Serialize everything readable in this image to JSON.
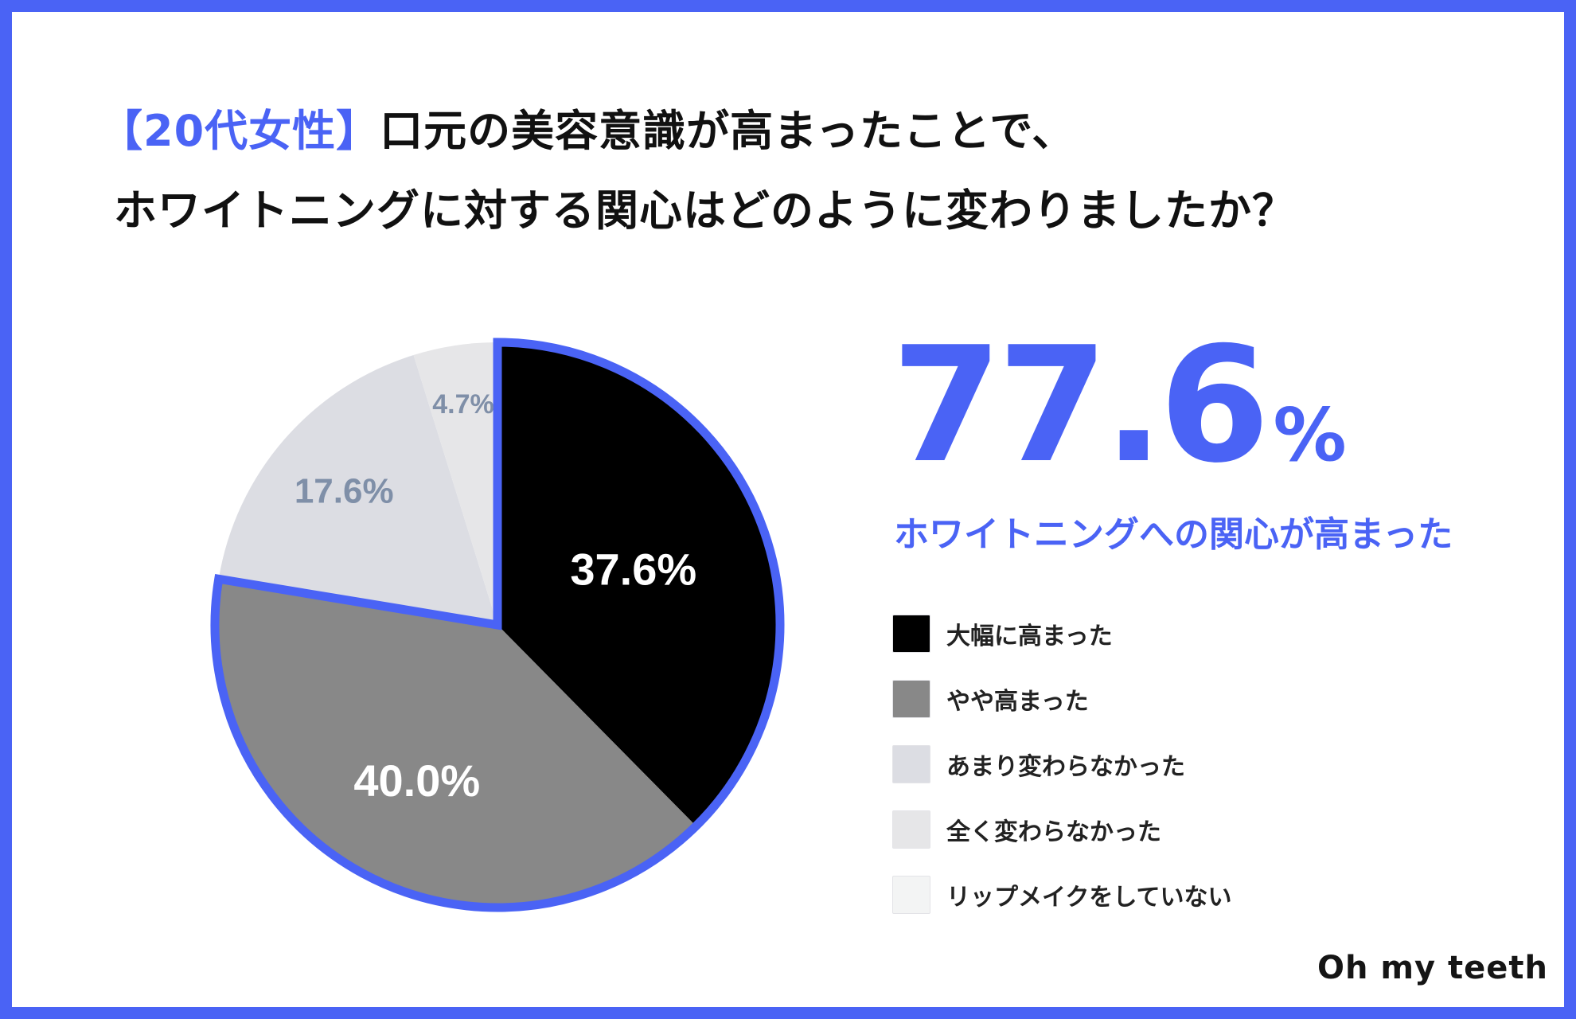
{
  "title": {
    "accent": "【20代女性】",
    "line1": "口元の美容意識が高まったことで、",
    "line2": "ホワイトニングに対する関心はどのように変わりましたか？"
  },
  "highlight": {
    "number": "77.6",
    "unit": "%",
    "caption": "ホワイトニングへの関心が高まった"
  },
  "brand": "Oh my teeth",
  "colors": {
    "accent": "#4a63f5"
  },
  "chart_data": {
    "type": "pie",
    "start": "12 o'clock, clockwise",
    "slices": [
      {
        "label": "大幅に高まった",
        "value": 37.6,
        "display": "37.6%",
        "color": "#000000",
        "label_color": "#ffffff",
        "highlighted": true
      },
      {
        "label": "やや高まった",
        "value": 40.0,
        "display": "40.0%",
        "color": "#888888",
        "label_color": "#ffffff",
        "highlighted": true
      },
      {
        "label": "あまり変わらなかった",
        "value": 17.6,
        "display": "17.6%",
        "color": "#dcdde3",
        "label_color": "#7f8fa8",
        "highlighted": false
      },
      {
        "label": "全く変わらなかった",
        "value": 4.7,
        "display": "4.7%",
        "color": "#e6e6e8",
        "label_color": "#7f8fa8",
        "highlighted": false
      },
      {
        "label": "リップメイクをしていない",
        "value": 0.1,
        "display": "",
        "color": "#f3f4f4",
        "label_color": "#7f8fa8",
        "highlighted": false
      }
    ],
    "highlight_outline_color": "#4a63f5",
    "legend": [
      {
        "label": "大幅に高まった",
        "color": "#000000"
      },
      {
        "label": "やや高まった",
        "color": "#888888"
      },
      {
        "label": "あまり変わらなかった",
        "color": "#dcdde3"
      },
      {
        "label": "全く変わらなかった",
        "color": "#e6e6e8"
      },
      {
        "label": "リップメイクをしていない",
        "color": "#f3f4f4"
      }
    ]
  }
}
